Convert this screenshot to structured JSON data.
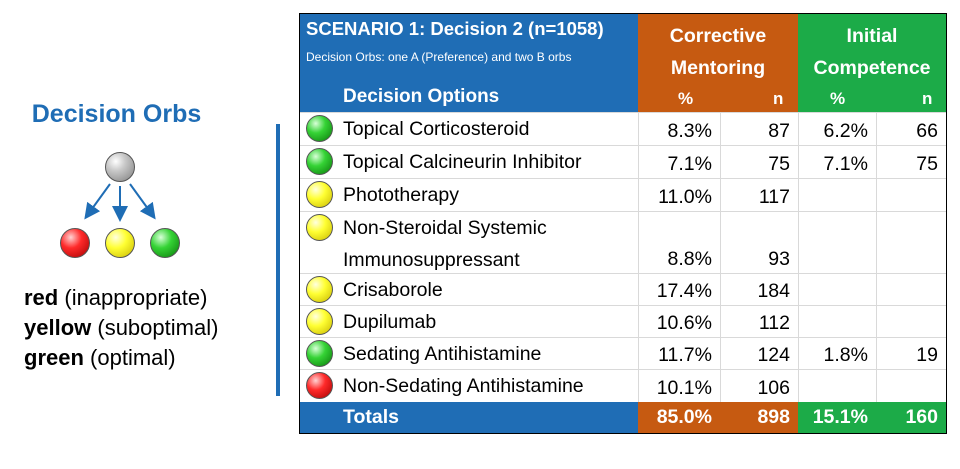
{
  "legend": {
    "title": "Decision Orbs",
    "lines": [
      {
        "bold": "red",
        "rest": " (inappropriate)"
      },
      {
        "bold": "yellow",
        "rest": " (suboptimal)"
      },
      {
        "bold": "green",
        "rest": " (optimal)"
      }
    ]
  },
  "table": {
    "scenario_title": "SCENARIO 1: Decision 2 (n=1058)",
    "scenario_subtitle": "Decision Orbs: one A (Preference) and two B orbs",
    "options_header": "Decision Options",
    "group1": {
      "line1": "Corrective",
      "line2": "Mentoring",
      "pct": "%",
      "n": "n"
    },
    "group2": {
      "line1": "Initial",
      "line2": "Competence",
      "pct": "%",
      "n": "n"
    },
    "rows": [
      {
        "orb": "green",
        "label1": "Topical Corticosteroid",
        "label2": "",
        "cm_pct": "8.3%",
        "cm_n": "87",
        "ic_pct": "6.2%",
        "ic_n": "66"
      },
      {
        "orb": "green",
        "label1": "Topical Calcineurin Inhibitor",
        "label2": "",
        "cm_pct": "7.1%",
        "cm_n": "75",
        "ic_pct": "7.1%",
        "ic_n": "75"
      },
      {
        "orb": "yellow",
        "label1": "Phototherapy",
        "label2": "",
        "cm_pct": "11.0%",
        "cm_n": "117",
        "ic_pct": "",
        "ic_n": ""
      },
      {
        "orb": "yellow",
        "label1": "Non-Steroidal Systemic",
        "label2": "Immunosuppressant",
        "cm_pct": "8.8%",
        "cm_n": "93",
        "ic_pct": "",
        "ic_n": ""
      },
      {
        "orb": "yellow",
        "label1": "Crisaborole",
        "label2": "",
        "cm_pct": "17.4%",
        "cm_n": "184",
        "ic_pct": "",
        "ic_n": ""
      },
      {
        "orb": "yellow",
        "label1": "Dupilumab",
        "label2": "",
        "cm_pct": "10.6%",
        "cm_n": "112",
        "ic_pct": "",
        "ic_n": ""
      },
      {
        "orb": "green",
        "label1": "Sedating Antihistamine",
        "label2": "",
        "cm_pct": "11.7%",
        "cm_n": "124",
        "ic_pct": "1.8%",
        "ic_n": "19"
      },
      {
        "orb": "red",
        "label1": "Non-Sedating Antihistamine",
        "label2": "",
        "cm_pct": "10.1%",
        "cm_n": "106",
        "ic_pct": "",
        "ic_n": ""
      }
    ],
    "totals": {
      "label": "Totals",
      "cm_pct": "85.0%",
      "cm_n": "898",
      "ic_pct": "15.1%",
      "ic_n": "160"
    }
  },
  "colors": {
    "blue": "#1f6db5",
    "orange": "#c65a11",
    "green": "#1cab48"
  }
}
